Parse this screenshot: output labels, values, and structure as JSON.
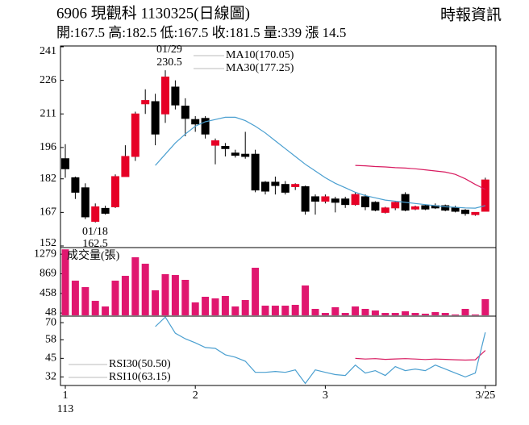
{
  "chart_data": [
    {
      "type": "candlestick",
      "title": "6906  現觀科 1130325(日線圖)",
      "source": "時報資訊",
      "subtitle": "開:167.5 高:182.5 低:167.5 收:181.5 量:339 漲 14.5",
      "categories": [
        "1",
        null,
        null,
        null,
        null,
        null,
        null,
        null,
        null,
        null,
        null,
        null,
        null,
        "2",
        null,
        null,
        null,
        null,
        null,
        null,
        null,
        null,
        null,
        null,
        null,
        null,
        "3",
        null,
        null,
        null,
        null,
        null,
        null,
        null,
        null,
        null,
        null,
        null,
        null,
        null,
        null,
        null,
        "3/25"
      ],
      "year_label": "113",
      "open": [
        191,
        182.5,
        178,
        163,
        168.8,
        169.5,
        183,
        192,
        215.5,
        216.5,
        211,
        223,
        214.5,
        208.5,
        209,
        197,
        196.5,
        193.5,
        193,
        193,
        180.5,
        180.5,
        179.5,
        178.5,
        178.5,
        174,
        172,
        173,
        173,
        170.5,
        174,
        171.5,
        167,
        169,
        175,
        168.5,
        170,
        170,
        170,
        169,
        168,
        166,
        167.5
      ],
      "high": [
        197.5,
        183,
        180,
        171,
        170,
        184,
        197,
        212,
        222,
        220,
        230.5,
        226,
        218,
        210,
        210,
        200,
        198,
        195,
        203,
        195,
        181,
        183,
        181,
        180,
        179,
        175,
        175,
        174,
        174,
        176,
        175,
        172,
        169.5,
        172,
        176,
        170,
        170.5,
        171,
        170.5,
        170,
        168.5,
        167,
        182.5
      ],
      "low": [
        182.5,
        173,
        164,
        162.5,
        166,
        169,
        183,
        190,
        211,
        197,
        207,
        213,
        201,
        203,
        200,
        188.5,
        192,
        191.5,
        191,
        176,
        175,
        175,
        175,
        177,
        166,
        166,
        171,
        167,
        169,
        170,
        168,
        167.5,
        166.5,
        168,
        167.5,
        168,
        168,
        168.5,
        167.5,
        167,
        165.5,
        165.5,
        167.5
      ],
      "close": [
        186.5,
        176,
        165,
        169.5,
        166.6,
        183,
        192,
        211,
        217,
        202,
        227.5,
        215,
        209,
        206.5,
        202,
        199,
        195.5,
        192.5,
        192,
        177,
        176.5,
        179,
        176,
        179.5,
        167.5,
        172,
        174,
        171.5,
        170.5,
        175,
        169.5,
        168,
        169,
        171.5,
        168,
        169.5,
        168.5,
        169,
        168,
        167.5,
        166.5,
        167,
        181.5
      ],
      "up_color": "#e60026",
      "down_color": "#000000",
      "ylim": [
        152,
        241
      ],
      "yticks": [
        241,
        226,
        211,
        196,
        182,
        167,
        152
      ],
      "series": [
        {
          "name": "MA10(170.05)",
          "color": "#4a9fd0",
          "values": [
            null,
            null,
            null,
            null,
            null,
            null,
            null,
            null,
            null,
            188,
            193,
            198,
            202,
            205.5,
            207.5,
            208.5,
            209.5,
            209.5,
            208,
            205.5,
            202.5,
            199,
            195.5,
            192,
            188.5,
            185.5,
            182.5,
            180,
            178,
            176,
            174.5,
            173.5,
            172.5,
            172,
            171.5,
            171,
            170.5,
            170,
            169.5,
            169.3,
            169,
            168.9,
            170.05
          ]
        },
        {
          "name": "MA30(177.25)",
          "color": "#d81b60",
          "values": [
            null,
            null,
            null,
            null,
            null,
            null,
            null,
            null,
            null,
            null,
            null,
            null,
            null,
            null,
            null,
            null,
            null,
            null,
            null,
            null,
            null,
            null,
            null,
            null,
            null,
            null,
            null,
            null,
            null,
            188,
            187.8,
            187.5,
            187.3,
            187,
            186.8,
            186.5,
            186,
            185.5,
            185,
            184,
            182,
            179.5,
            177.25
          ]
        }
      ],
      "annotations": [
        {
          "date": "01/29",
          "value": 230.5
        },
        {
          "date": "01/18",
          "value": 162.5
        }
      ]
    },
    {
      "type": "bar",
      "title": "成交量(張)",
      "values": [
        1380,
        725,
        590,
        303,
        185,
        725,
        826,
        1214,
        1079,
        523,
        860,
        843,
        742,
        270,
        388,
        354,
        405,
        185,
        320,
        995,
        202,
        202,
        202,
        219,
        624,
        135,
        50,
        169,
        50,
        185,
        135,
        101,
        50,
        50,
        84,
        50,
        34,
        67,
        50,
        17,
        135,
        17,
        339
      ],
      "color": "#e0176f",
      "ylim": [
        0,
        1400
      ],
      "yticks": [
        1279,
        869,
        458,
        48
      ]
    },
    {
      "type": "line",
      "series": [
        {
          "name": "RSI30(50.50)",
          "color": "#d81b60",
          "values": [
            null,
            null,
            null,
            null,
            null,
            null,
            null,
            null,
            null,
            null,
            null,
            null,
            null,
            null,
            null,
            null,
            null,
            null,
            null,
            null,
            null,
            null,
            null,
            null,
            null,
            null,
            null,
            null,
            null,
            45,
            44.5,
            44.8,
            44.3,
            44.6,
            44.8,
            44.5,
            44.2,
            44.5,
            44.3,
            44,
            43.8,
            44,
            50.5
          ]
        },
        {
          "name": "RSI10(63.15)",
          "color": "#4a9fd0",
          "values": [
            null,
            null,
            null,
            null,
            null,
            null,
            null,
            null,
            null,
            67.2,
            73.9,
            62.6,
            58.7,
            55.9,
            52.6,
            52,
            47.5,
            45.8,
            43,
            35.2,
            35.2,
            35.8,
            35.2,
            36.9,
            27.4,
            36.9,
            35.2,
            33.6,
            33,
            40.3,
            34.7,
            36.4,
            33,
            39.2,
            36.4,
            37.5,
            36.4,
            40.3,
            37.5,
            34.7,
            32,
            34.7,
            63.15
          ]
        }
      ],
      "ylim": [
        26,
        74
      ],
      "yticks": [
        70,
        58,
        45,
        32
      ]
    }
  ]
}
